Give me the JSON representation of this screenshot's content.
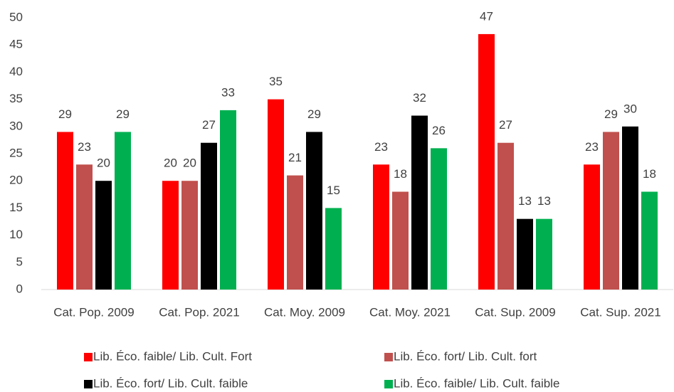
{
  "chart_data": {
    "type": "bar",
    "categories": [
      "Cat. Pop. 2009",
      "Cat. Pop. 2021",
      "Cat. Moy. 2009",
      "Cat. Moy. 2021",
      "Cat. Sup. 2009",
      "Cat. Sup. 2021"
    ],
    "series": [
      {
        "name": "Lib. Éco. faible/ Lib. Cult. Fort",
        "color": "#ff0000",
        "values": [
          29,
          20,
          35,
          23,
          47,
          23
        ]
      },
      {
        "name": "Lib. Éco. fort/ Lib. Cult. fort",
        "color": "#c0504d",
        "values": [
          23,
          20,
          21,
          18,
          27,
          29
        ]
      },
      {
        "name": "Lib. Éco. fort/ Lib. Cult. faible",
        "color": "#000000",
        "values": [
          20,
          27,
          29,
          32,
          13,
          30
        ]
      },
      {
        "name": "Lib. Éco. faible/ Lib. Cult. faible",
        "color": "#00b050",
        "values": [
          29,
          33,
          15,
          26,
          13,
          18
        ]
      }
    ],
    "ylim": [
      0,
      50
    ],
    "yticks": [
      0,
      5,
      10,
      15,
      20,
      25,
      30,
      35,
      40,
      45,
      50
    ],
    "grid": false,
    "legend": "bottom"
  }
}
